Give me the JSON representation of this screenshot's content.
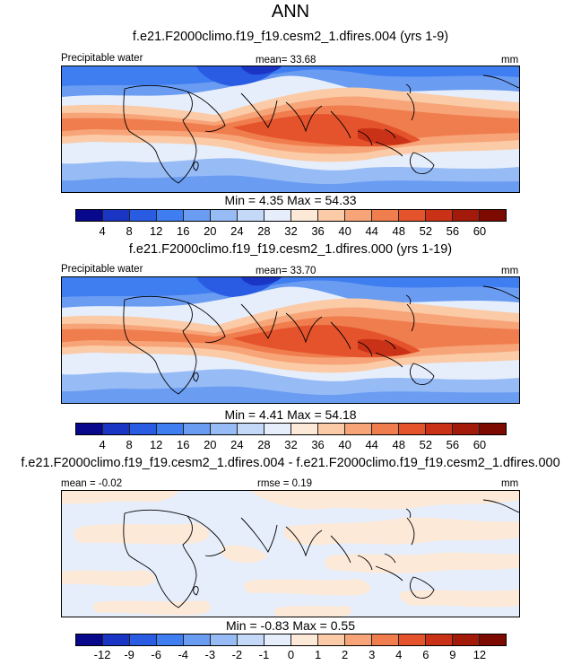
{
  "title": "ANN",
  "colors": {
    "abs_scale": [
      "#08088c",
      "#1a35c4",
      "#2a5ce3",
      "#3f7ef0",
      "#6a9cf2",
      "#97bbf5",
      "#c4d8f7",
      "#e6eefb",
      "#fde9d8",
      "#fbcba8",
      "#f7a578",
      "#f07d4e",
      "#e4532c",
      "#ca3218",
      "#a41a0a",
      "#7d0a00"
    ],
    "diff_scale": [
      "#08088c",
      "#1a35c4",
      "#2a5ce3",
      "#3f7ef0",
      "#6a9cf2",
      "#97bbf5",
      "#c4d8f7",
      "#e6eefb",
      "#fde9d8",
      "#fbcba8",
      "#f7a578",
      "#f07d4e",
      "#e4532c",
      "#ca3218",
      "#a41a0a",
      "#7d0a00"
    ]
  },
  "chart_data": [
    {
      "type": "heatmap",
      "title": "f.e21.F2000climo.f19_f19.cesm2_1.dfires.004 (yrs 1-9)",
      "left_label": "Precipitable water",
      "mean_label": "mean=  33.68",
      "units": "mm",
      "minmax": "Min =   4.35 Max =  54.33",
      "min": 4.35,
      "max": 54.33,
      "mean": 33.68,
      "levels": [
        "4",
        "8",
        "12",
        "16",
        "20",
        "24",
        "28",
        "32",
        "36",
        "40",
        "44",
        "48",
        "52",
        "56",
        "60"
      ]
    },
    {
      "type": "heatmap",
      "title": "f.e21.F2000climo.f19_f19.cesm2_1.dfires.000 (yrs 1-19)",
      "left_label": "Precipitable water",
      "mean_label": "mean=  33.70",
      "units": "mm",
      "minmax": "Min =   4.41 Max =  54.18",
      "min": 4.41,
      "max": 54.18,
      "mean": 33.7,
      "levels": [
        "4",
        "8",
        "12",
        "16",
        "20",
        "24",
        "28",
        "32",
        "36",
        "40",
        "44",
        "48",
        "52",
        "56",
        "60"
      ]
    },
    {
      "type": "heatmap",
      "title": "f.e21.F2000climo.f19_f19.cesm2_1.dfires.004 - f.e21.F2000climo.f19_f19.cesm2_1.dfires.000",
      "left_label": "mean =  -0.02",
      "mean_label": "rmse =   0.19",
      "units": "mm",
      "minmax": "Min =  -0.83 Max =   0.55",
      "min": -0.83,
      "max": 0.55,
      "mean": -0.02,
      "rmse": 0.19,
      "levels": [
        "-12",
        "-9",
        "-6",
        "-4",
        "-3",
        "-2",
        "-1",
        "0",
        "1",
        "2",
        "3",
        "4",
        "6",
        "9",
        "12"
      ]
    }
  ]
}
